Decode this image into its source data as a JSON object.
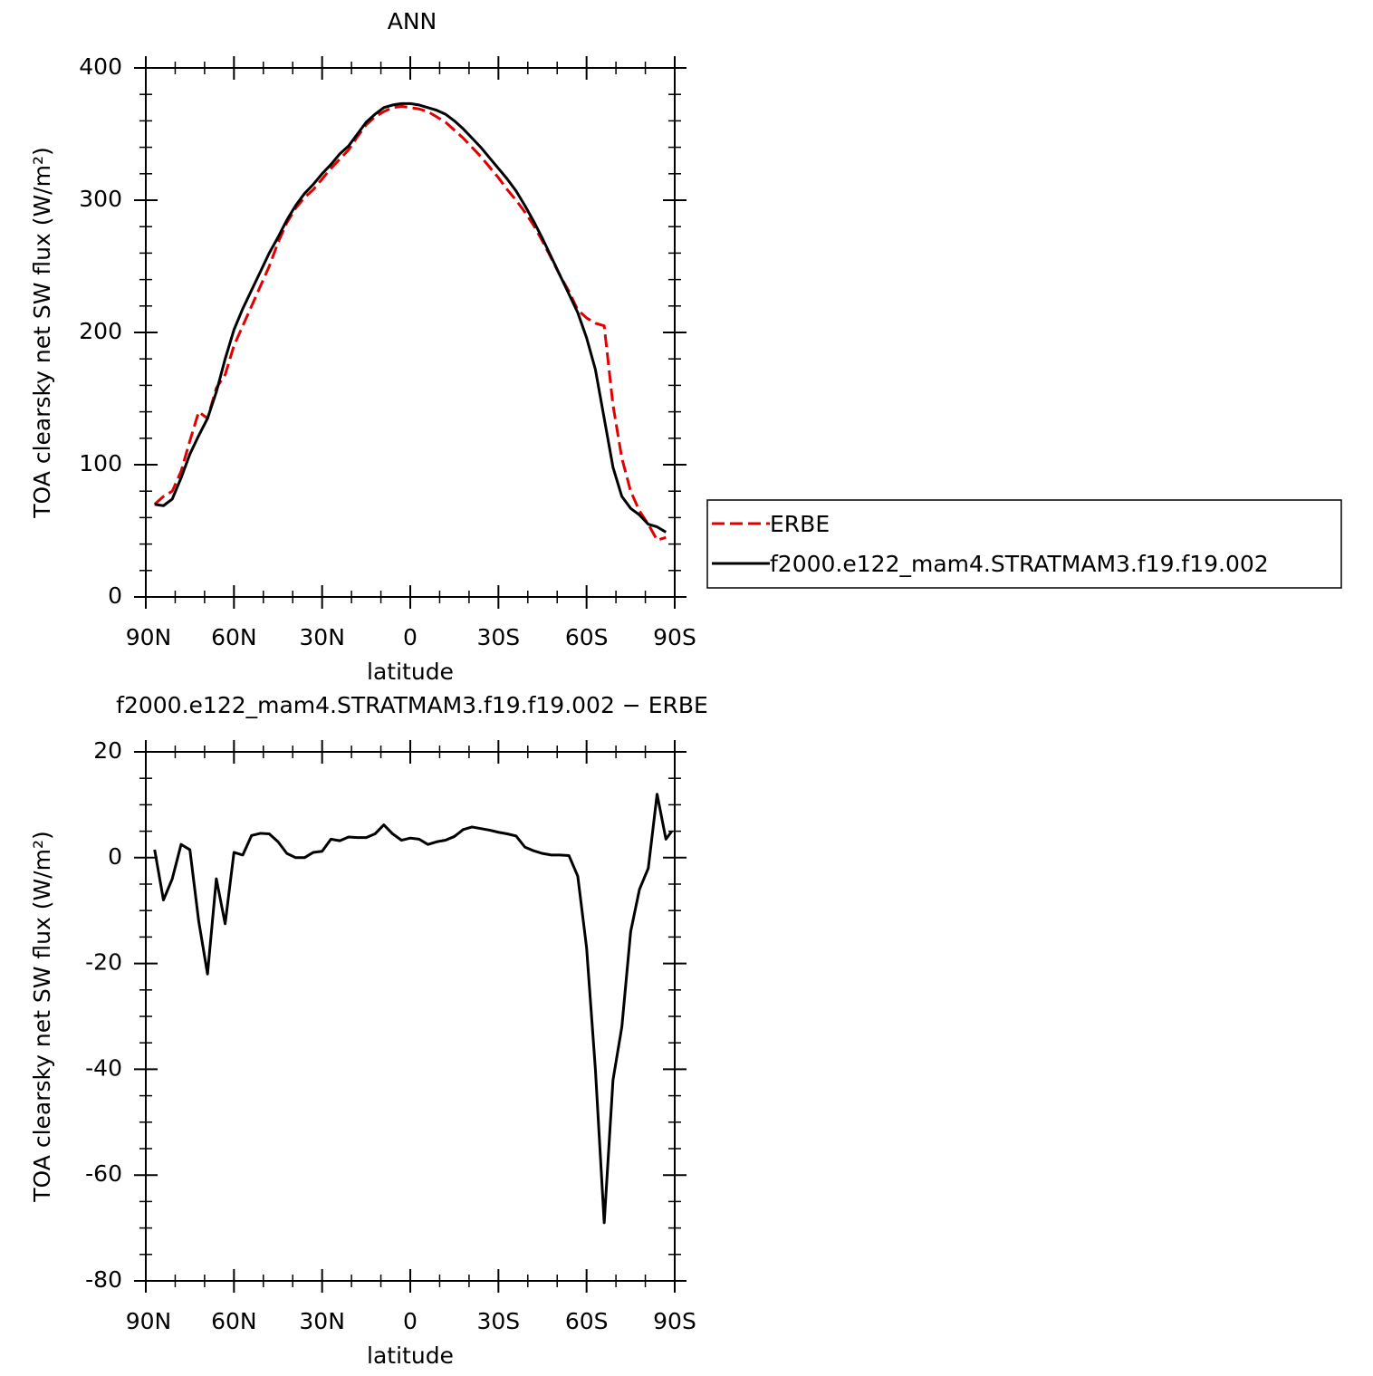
{
  "chart_data": [
    {
      "type": "line",
      "title": "ANN",
      "xlabel": "latitude",
      "ylabel": "TOA clearsky net SW flux (W/m²)",
      "xlim": [
        90,
        -90
      ],
      "ylim": [
        0,
        400
      ],
      "xticks": [
        {
          "value": 90,
          "label": "90N"
        },
        {
          "value": 60,
          "label": "60N"
        },
        {
          "value": 30,
          "label": "30N"
        },
        0,
        {
          "value": -30,
          "label": "30S"
        },
        {
          "value": -60,
          "label": "60S"
        },
        {
          "value": -90,
          "label": "90S"
        }
      ],
      "yticks": [
        0,
        100,
        200,
        300,
        400
      ],
      "legend": "right",
      "x": [
        87,
        84,
        81,
        78,
        75,
        72,
        69,
        66,
        63,
        60,
        57,
        54,
        51,
        48,
        45,
        42,
        39,
        36,
        33,
        30,
        27,
        24,
        21,
        18,
        15,
        12,
        9,
        6,
        3,
        0,
        -3,
        -6,
        -9,
        -12,
        -15,
        -18,
        -21,
        -24,
        -27,
        -30,
        -33,
        -36,
        -39,
        -42,
        -45,
        -48,
        -51,
        -54,
        -57,
        -60,
        -63,
        -66,
        -69,
        -72,
        -75,
        -78,
        -81,
        -84,
        -87
      ],
      "series": [
        {
          "name": "ERBE",
          "color": "#e00000",
          "dashed": true,
          "values": [
            70,
            76,
            80,
            95,
            118,
            140,
            135,
            158,
            168,
            190,
            205,
            220,
            235,
            250,
            268,
            283,
            294,
            302,
            308,
            316,
            324,
            331,
            338,
            348,
            357,
            363,
            367,
            370,
            371,
            370,
            369,
            367,
            363,
            359,
            353,
            347,
            340,
            333,
            325,
            317,
            308,
            300,
            291,
            281,
            269,
            256,
            243,
            231,
            217,
            211,
            207,
            205,
            145,
            105,
            80,
            65,
            55,
            43,
            45
          ]
        },
        {
          "name": "f2000.e122_mam4.STRATMAM3.f19.f19.002",
          "color": "#000000",
          "dashed": false,
          "values": [
            70,
            69,
            74,
            90,
            108,
            122,
            135,
            155,
            180,
            202,
            218,
            232,
            246,
            260,
            272,
            285,
            296,
            305,
            312,
            320,
            327,
            335,
            341,
            350,
            359,
            365,
            370,
            372,
            373,
            373,
            372,
            370,
            368,
            365,
            360,
            354,
            347,
            340,
            332,
            324,
            316,
            307,
            296,
            284,
            271,
            257,
            243,
            229,
            215,
            196,
            172,
            135,
            98,
            76,
            67,
            62,
            55,
            53,
            49
          ]
        }
      ]
    },
    {
      "type": "line",
      "title": "f2000.e122_mam4.STRATMAM3.f19.f19.002 − ERBE",
      "xlabel": "latitude",
      "ylabel": "TOA clearsky net SW flux (W/m²)",
      "xlim": [
        90,
        -90
      ],
      "ylim": [
        -80,
        20
      ],
      "xticks": [
        {
          "value": 90,
          "label": "90N"
        },
        {
          "value": 60,
          "label": "60N"
        },
        {
          "value": 30,
          "label": "30N"
        },
        0,
        {
          "value": -30,
          "label": "30S"
        },
        {
          "value": -60,
          "label": "60S"
        },
        {
          "value": -90,
          "label": "90S"
        }
      ],
      "yticks": [
        -80,
        -60,
        -40,
        -20,
        0,
        20
      ],
      "x": [
        87,
        84,
        81,
        78,
        75,
        72,
        69,
        66,
        63,
        60,
        57,
        54,
        51,
        48,
        45,
        42,
        39,
        36,
        33,
        30,
        27,
        24,
        21,
        18,
        15,
        12,
        9,
        6,
        3,
        0,
        -3,
        -6,
        -9,
        -12,
        -15,
        -18,
        -21,
        -24,
        -27,
        -30,
        -33,
        -36,
        -39,
        -42,
        -45,
        -48,
        -51,
        -54,
        -57,
        -60,
        -63,
        -66,
        -69,
        -72,
        -75,
        -78,
        -81,
        -84,
        -87,
        -89
      ],
      "series": [
        {
          "color": "#000000",
          "dashed": false,
          "values": [
            1.5,
            -8,
            -4,
            2.5,
            1.5,
            -12,
            -22,
            -4,
            -12.5,
            1,
            0.5,
            4.2,
            4.6,
            4.5,
            3,
            0.8,
            0,
            0,
            1,
            1.2,
            3.5,
            3.2,
            3.9,
            3.8,
            3.8,
            4.5,
            6.2,
            4.5,
            3.3,
            3.7,
            3.5,
            2.5,
            3,
            3.3,
            4,
            5.3,
            5.8,
            5.5,
            5.2,
            4.8,
            4.5,
            4.1,
            2,
            1.3,
            0.8,
            0.5,
            0.5,
            0.4,
            -3.5,
            -17,
            -40,
            -69,
            -42,
            -32,
            -14,
            -6,
            -2,
            12,
            3.5,
            5
          ]
        }
      ]
    }
  ]
}
